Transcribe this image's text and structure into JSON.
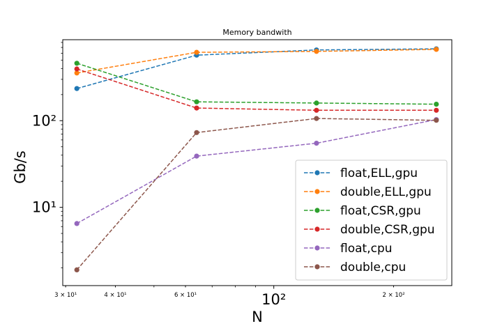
{
  "chart_data": {
    "type": "line",
    "title": "Memory bandwith",
    "xlabel": "N",
    "ylabel": "Gb/s",
    "xscale": "log",
    "yscale": "log",
    "xlim": [
      29.5,
      280
    ],
    "ylim": [
      1.25,
      860
    ],
    "grid": false,
    "legend_position": "lower-right",
    "line_style": "dashed",
    "marker": "circle",
    "x": [
      32,
      64,
      128,
      256
    ],
    "x_ticks": [
      {
        "value": 30,
        "label": "3 × 10¹",
        "kind": "minor"
      },
      {
        "value": 40,
        "label": "4 × 10¹",
        "kind": "minor"
      },
      {
        "value": 60,
        "label": "6 × 10¹",
        "kind": "minor"
      },
      {
        "value": 100,
        "label": "10²",
        "kind": "major"
      },
      {
        "value": 200,
        "label": "2 × 10²",
        "kind": "minor"
      }
    ],
    "y_ticks": [
      {
        "value": 10,
        "label": "10¹"
      },
      {
        "value": 100,
        "label": "10²"
      }
    ],
    "series": [
      {
        "name": "float,ELL,gpu",
        "color": "#1f77b4",
        "values": [
          235,
          570,
          655,
          675
        ]
      },
      {
        "name": "double,ELL,gpu",
        "color": "#ff7f0e",
        "values": [
          355,
          615,
          630,
          665
        ]
      },
      {
        "name": "float,CSR,gpu",
        "color": "#2ca02c",
        "values": [
          460,
          165,
          160,
          155
        ]
      },
      {
        "name": "double,CSR,gpu",
        "color": "#d62728",
        "values": [
          395,
          140,
          132,
          132
        ]
      },
      {
        "name": "float,cpu",
        "color": "#9467bd",
        "values": [
          6.5,
          39,
          55,
          103
        ]
      },
      {
        "name": "double,cpu",
        "color": "#8c564b",
        "values": [
          1.9,
          73,
          106,
          101
        ]
      }
    ]
  }
}
